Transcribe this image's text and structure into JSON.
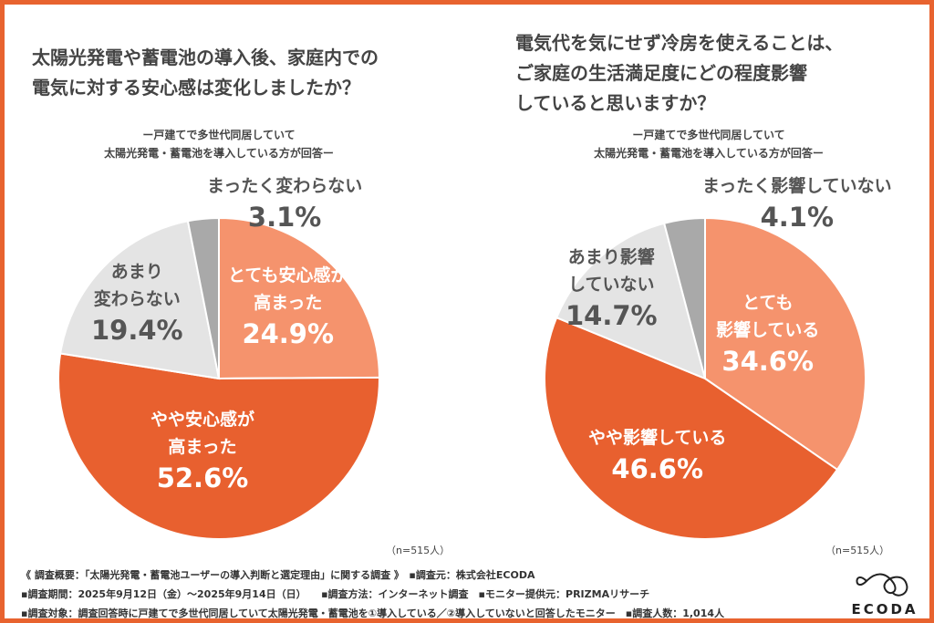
{
  "chart_data": [
    {
      "type": "pie",
      "title": "太陽光発電や蓄電池の導入後、家庭内での電気に対する安心感は変化しましたか？",
      "subtitle": [
        "ー戸建てで多世代同居していて",
        "太陽光発電・蓄電池を導入している方が回答ー"
      ],
      "slices": [
        {
          "label": [
            "とても安心感が",
            "高まった"
          ],
          "value": 24.9,
          "display": "24.9%",
          "color": "#F5936D"
        },
        {
          "label": [
            "やや安心感が",
            "高まった"
          ],
          "value": 52.6,
          "display": "52.6%",
          "color": "#E8602F"
        },
        {
          "label": [
            "あまり",
            "変わらない"
          ],
          "value": 19.4,
          "display": "19.4%",
          "color": "#E4E4E4"
        },
        {
          "label": [
            "まったく変わらない"
          ],
          "value": 3.1,
          "display": "3.1%",
          "color": "#A9A9A9"
        }
      ],
      "n": "（n=515人）"
    },
    {
      "type": "pie",
      "title": "電気代を気にせず冷房を使えることは、ご家庭の生活満足度にどの程度影響していると思いますか？",
      "subtitle": [
        "ー戸建てで多世代同居していて",
        "太陽光発電・蓄電池を導入している方が回答ー"
      ],
      "slices": [
        {
          "label": [
            "とても",
            "影響している"
          ],
          "value": 34.6,
          "display": "34.6%",
          "color": "#F5936D"
        },
        {
          "label": [
            "やや影響している"
          ],
          "value": 46.6,
          "display": "46.6%",
          "color": "#E8602F"
        },
        {
          "label": [
            "あまり影響",
            "していない"
          ],
          "value": 14.7,
          "display": "14.7%",
          "color": "#E4E4E4"
        },
        {
          "label": [
            "まったく影響していない"
          ],
          "value": 4.1,
          "display": "4.1%",
          "color": "#A9A9A9"
        }
      ],
      "n": "（n=515人）"
    }
  ],
  "titles": {
    "left": [
      "太陽光発電や蓄電池の導入後、家庭内での",
      "電気に対する安心感は変化しましたか？"
    ],
    "right": [
      "電気代を気にせず冷房を使えることは、",
      "ご家庭の生活満足度にどの程度影響",
      "していると思いますか？"
    ]
  },
  "footer": {
    "line1": "《 調査概要：「太陽光発電・蓄電池ユーザーの導入判断と選定理由」に関する調査 》　▪調査元：株式会社ECODA",
    "line2": "▪調査期間：2025年9月12日（金）〜2025年9月14日（日）　　▪調査方法：インターネット調査　▪モニター提供元：PRIZMAリサーチ",
    "line3": "▪調査対象：調査回答時に戸建てで多世代同居していて太陽光発電・蓄電池を①導入している／②導入していないと回答したモニター　▪調査人数：1,014人",
    "logo": "ECODA"
  }
}
